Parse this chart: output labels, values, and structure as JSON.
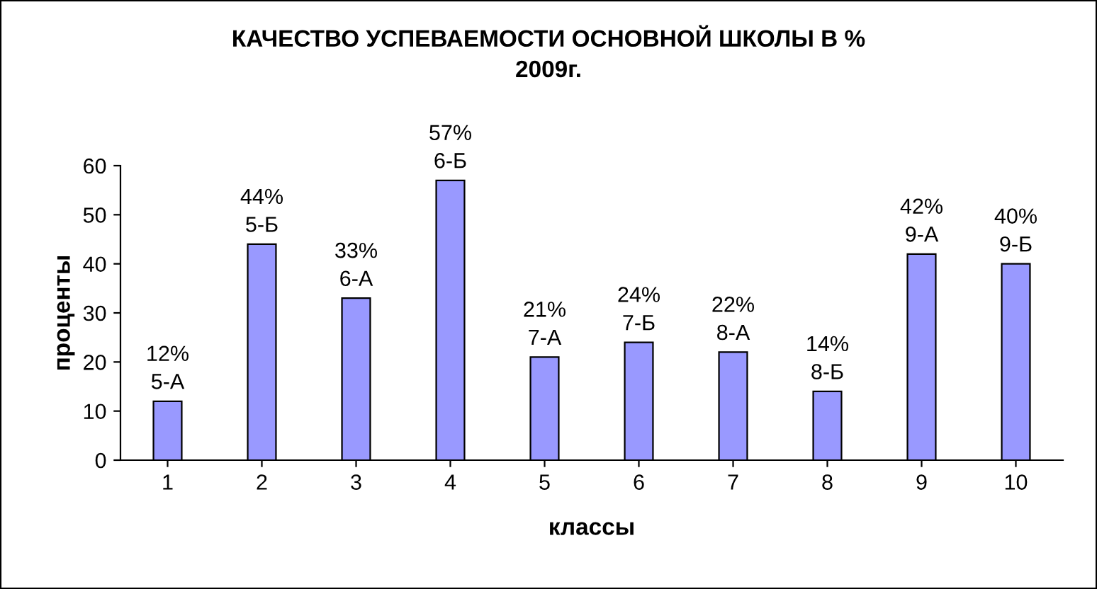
{
  "chart_data": {
    "type": "bar",
    "title": "КАЧЕСТВО УСПЕВАЕМОСТИ ОСНОВНОЙ ШКОЛЫ В %\n2009г.",
    "xlabel": "классы",
    "ylabel": "проценты",
    "categories": [
      "1",
      "2",
      "3",
      "4",
      "5",
      "6",
      "7",
      "8",
      "9",
      "10"
    ],
    "values": [
      12,
      44,
      33,
      57,
      21,
      24,
      22,
      14,
      42,
      40
    ],
    "value_labels": [
      "12%\n5-А",
      "44%\n5-Б",
      "33%\n6-А",
      "57%\n6-Б",
      "21%\n7-А",
      "24%\n7-Б",
      "22%\n8-А",
      "14%\n8-Б",
      "42%\n9-А",
      "40%\n9-Б"
    ],
    "color": "#9999ff",
    "ylim": [
      0,
      60
    ],
    "yticks": [
      0,
      10,
      20,
      30,
      40,
      50,
      60
    ],
    "grid": false,
    "legend": false
  }
}
